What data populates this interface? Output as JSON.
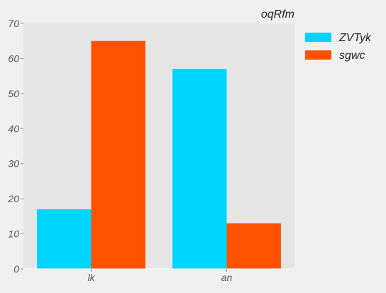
{
  "chart_data": {
    "type": "bar",
    "title": "oqRfm",
    "xlabel": "",
    "ylabel": "",
    "categories": [
      "lk",
      "an"
    ],
    "series": [
      {
        "name": "ZVTyk",
        "values": [
          17,
          57
        ],
        "color": "#00d5ff"
      },
      {
        "name": "sgwc",
        "values": [
          65,
          13
        ],
        "color": "#ff5200"
      }
    ],
    "ylim": [
      0,
      70
    ],
    "yticks": [
      0,
      10,
      20,
      30,
      40,
      50,
      60,
      70
    ],
    "grid": false,
    "legend_position": "right",
    "plot_background": "#e5e5e5",
    "page_background": "#f0f0f0"
  }
}
